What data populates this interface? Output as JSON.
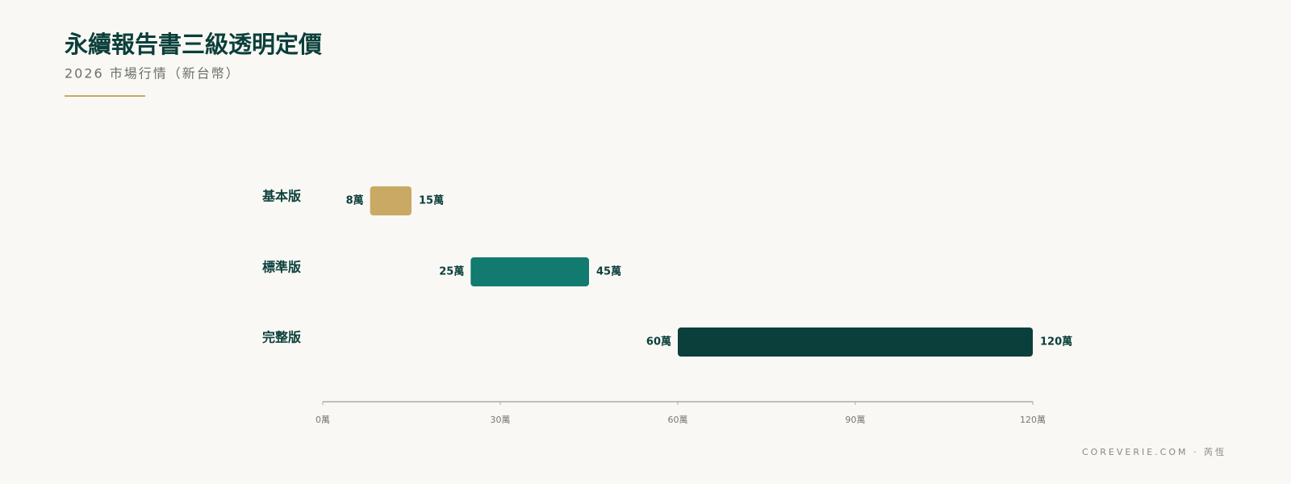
{
  "chart_data": {
    "type": "range-bar",
    "title": "永續報告書三級透明定價",
    "subtitle": "2026 市場行情（新台幣）",
    "footer": "COREVERIE.COM · 芮恆",
    "categories": [
      "基本版",
      "標準版",
      "完整版"
    ],
    "start": {
      "values": [
        8,
        25,
        60
      ],
      "value_labels": [
        "8萬",
        "25萬",
        "60萬"
      ]
    },
    "end": {
      "values": [
        15,
        45,
        120
      ],
      "value_labels": [
        "15萬",
        "45萬",
        "120萬"
      ]
    },
    "colors": [
      "#c9a964",
      "#127a6e",
      "#0b3f3b"
    ],
    "xlim": [
      0,
      120
    ],
    "xticks": [
      {
        "value": 0,
        "label": "0萬"
      },
      {
        "value": 30,
        "label": "30萬"
      },
      {
        "value": 60,
        "label": "60萬"
      },
      {
        "value": 90,
        "label": "90萬"
      },
      {
        "value": 120,
        "label": "120萬"
      }
    ]
  }
}
